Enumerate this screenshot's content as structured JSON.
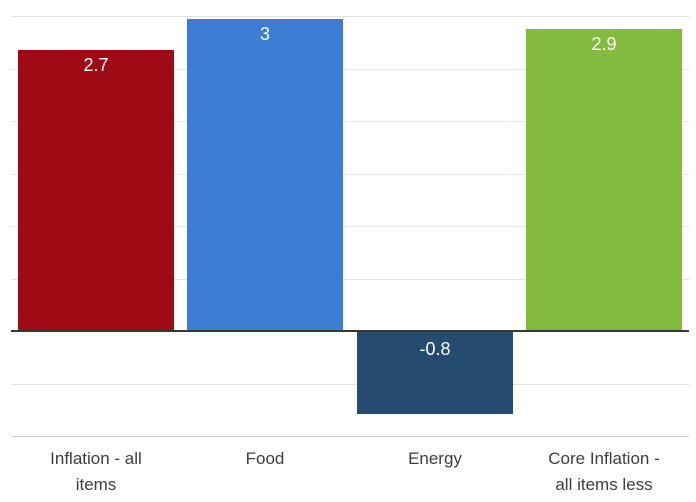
{
  "chart_data": {
    "type": "bar",
    "title": "",
    "xlabel": "",
    "ylabel": "",
    "categories": [
      "Inflation - all\nitems",
      "Food",
      "Energy",
      "Core Inflation -\nall items less"
    ],
    "values": [
      2.7,
      3,
      -0.8,
      2.9
    ],
    "value_labels": [
      "2.7",
      "3",
      "-0.8",
      "2.9"
    ],
    "bar_colors": [
      "#9E0B14",
      "#3A7DD3",
      "#254B6F",
      "#82BB3E"
    ],
    "ylim": [
      -1,
      3
    ],
    "gridline_step": 0.5,
    "grid": true,
    "legend": false,
    "value_labels_inside_bars": true
  },
  "colors": {
    "background": "#ffffff",
    "gridline": "#e3e3e3",
    "bottom_gridline": "#cccccc",
    "zero_axis": "#383838",
    "category_text": "#3d3d3d",
    "value_text": "#ffffff"
  }
}
